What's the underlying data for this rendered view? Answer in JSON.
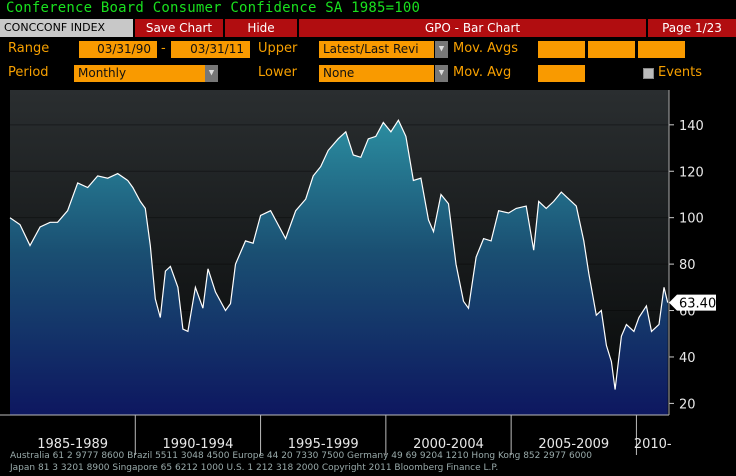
{
  "title": "Conference Board Consumer Confidence SA 1985=100",
  "tabs": {
    "ticker": "CONCCONF INDEX",
    "save": "Save Chart",
    "hide": "Hide",
    "center": "GPO - Bar Chart",
    "page": "Page 1/23"
  },
  "controls": {
    "range_label": "Range",
    "range_start": "03/31/90",
    "range_dash": "-",
    "range_end": "03/31/11",
    "upper_label": "Upper",
    "upper_value": "Latest/Last Revi",
    "mov_avgs_label": "Mov. Avgs",
    "period_label": "Period",
    "period_value": "Monthly",
    "lower_label": "Lower",
    "lower_value": "None",
    "mov_avg_label": "Mov. Avg",
    "events_label": "Events"
  },
  "colors": {
    "accent_orange": "#f99a00",
    "label_orange": "#f7a000",
    "title_green": "#19e01e",
    "button_red": "#b10d10",
    "line_white": "#ffffff",
    "fill_teal": "#2a8a9a"
  },
  "icons": {
    "dropdown": "chevron-down-icon",
    "events_checkbox": "checkbox-icon"
  },
  "chart_data": {
    "type": "area",
    "last_value_label": "63.40",
    "ylim": [
      15,
      155
    ],
    "yticks": [
      20,
      40,
      60,
      80,
      100,
      120,
      140
    ],
    "xlim": [
      1985,
      2011.3
    ],
    "x_tick_years": [
      1990,
      1995,
      2000,
      2005,
      2010
    ],
    "period_labels": [
      "1985-1989",
      "1990-1994",
      "1995-1999",
      "2000-2004",
      "2005-2009",
      "2010-"
    ],
    "series": [
      {
        "points": [
          [
            1985.0,
            100
          ],
          [
            1985.4,
            97
          ],
          [
            1985.8,
            88
          ],
          [
            1986.2,
            96
          ],
          [
            1986.6,
            98
          ],
          [
            1986.9,
            98
          ],
          [
            1987.3,
            103
          ],
          [
            1987.7,
            115
          ],
          [
            1988.1,
            113
          ],
          [
            1988.5,
            118
          ],
          [
            1988.9,
            117
          ],
          [
            1989.3,
            119
          ],
          [
            1989.7,
            116
          ],
          [
            1989.9,
            113
          ],
          [
            1990.2,
            107
          ],
          [
            1990.4,
            104
          ],
          [
            1990.6,
            88
          ],
          [
            1990.8,
            65
          ],
          [
            1991.0,
            57
          ],
          [
            1991.2,
            77
          ],
          [
            1991.4,
            79
          ],
          [
            1991.7,
            70
          ],
          [
            1991.9,
            52
          ],
          [
            1992.1,
            51
          ],
          [
            1992.4,
            70
          ],
          [
            1992.7,
            61
          ],
          [
            1992.9,
            78
          ],
          [
            1993.2,
            68
          ],
          [
            1993.6,
            60
          ],
          [
            1993.8,
            63
          ],
          [
            1994.0,
            80
          ],
          [
            1994.4,
            90
          ],
          [
            1994.7,
            89
          ],
          [
            1995.0,
            101
          ],
          [
            1995.4,
            103
          ],
          [
            1995.7,
            97
          ],
          [
            1996.0,
            91
          ],
          [
            1996.4,
            103
          ],
          [
            1996.8,
            108
          ],
          [
            1997.1,
            118
          ],
          [
            1997.4,
            122
          ],
          [
            1997.7,
            129
          ],
          [
            1998.1,
            134
          ],
          [
            1998.4,
            137
          ],
          [
            1998.7,
            127
          ],
          [
            1999.0,
            126
          ],
          [
            1999.3,
            134
          ],
          [
            1999.6,
            135
          ],
          [
            1999.9,
            141
          ],
          [
            2000.2,
            137
          ],
          [
            2000.5,
            142
          ],
          [
            2000.8,
            135
          ],
          [
            2001.1,
            116
          ],
          [
            2001.4,
            117
          ],
          [
            2001.7,
            99
          ],
          [
            2001.9,
            94
          ],
          [
            2002.2,
            110
          ],
          [
            2002.5,
            106
          ],
          [
            2002.8,
            80
          ],
          [
            2003.1,
            64
          ],
          [
            2003.3,
            61
          ],
          [
            2003.6,
            83
          ],
          [
            2003.9,
            91
          ],
          [
            2004.2,
            90
          ],
          [
            2004.5,
            103
          ],
          [
            2004.9,
            102
          ],
          [
            2005.2,
            104
          ],
          [
            2005.6,
            105
          ],
          [
            2005.9,
            86
          ],
          [
            2006.1,
            107
          ],
          [
            2006.4,
            104
          ],
          [
            2006.7,
            107
          ],
          [
            2007.0,
            111
          ],
          [
            2007.3,
            108
          ],
          [
            2007.6,
            105
          ],
          [
            2007.9,
            90
          ],
          [
            2008.1,
            76
          ],
          [
            2008.4,
            58
          ],
          [
            2008.6,
            60
          ],
          [
            2008.8,
            45
          ],
          [
            2009.0,
            38
          ],
          [
            2009.15,
            26
          ],
          [
            2009.4,
            49
          ],
          [
            2009.6,
            54
          ],
          [
            2009.9,
            51
          ],
          [
            2010.1,
            57
          ],
          [
            2010.4,
            62
          ],
          [
            2010.6,
            51
          ],
          [
            2010.9,
            54
          ],
          [
            2011.1,
            70
          ],
          [
            2011.25,
            63.4
          ]
        ]
      }
    ]
  },
  "footer": {
    "line1": "Australia 61 2 9777 8600 Brazil 5511 3048 4500 Europe 44 20 7330 7500 Germany 49 69 9204 1210 Hong Kong 852 2977 6000",
    "line2": "Japan 81 3 3201 8900          Singapore 65 6212 1000          U.S. 1 212 318 2000          Copyright 2011 Bloomberg Finance L.P."
  }
}
